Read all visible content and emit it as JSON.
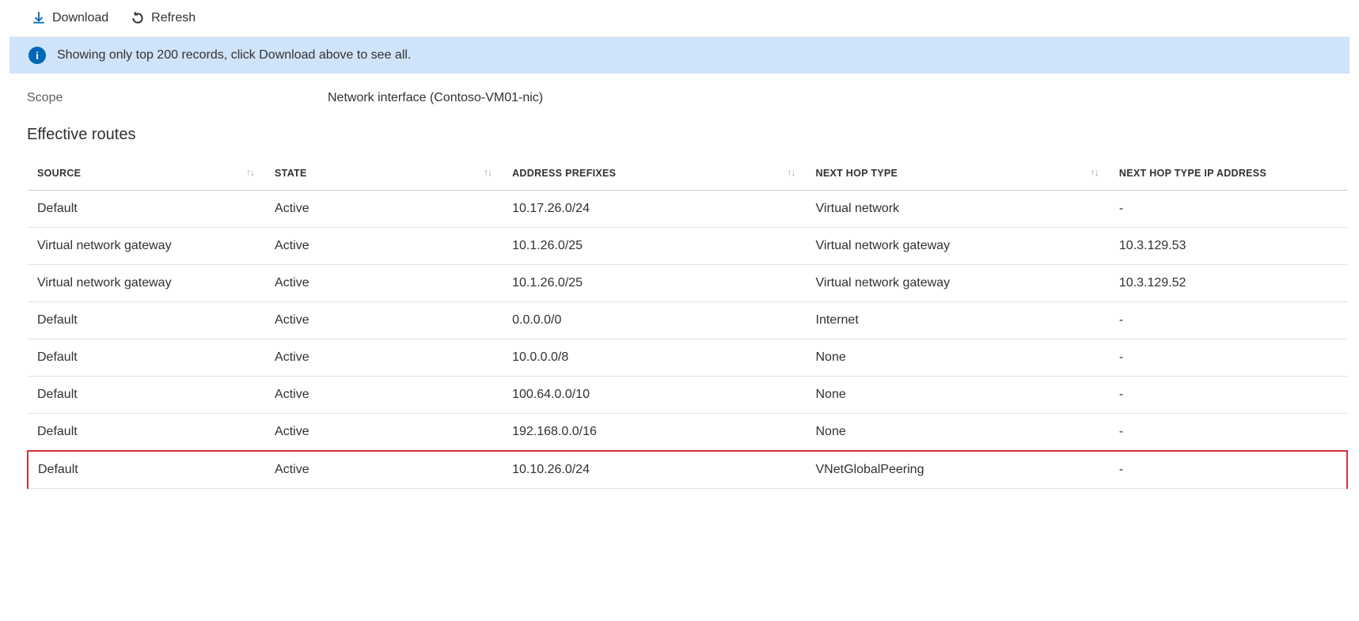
{
  "toolbar": {
    "download_label": "Download",
    "refresh_label": "Refresh"
  },
  "info_bar": {
    "message": "Showing only top 200 records, click Download above to see all."
  },
  "scope": {
    "label": "Scope",
    "value": "Network interface (Contoso-VM01-nic)"
  },
  "section_title": "Effective routes",
  "columns": {
    "source": {
      "label": "Source",
      "width_pct": 18
    },
    "state": {
      "label": "State",
      "width_pct": 18
    },
    "prefixes": {
      "label": "Address Prefixes",
      "width_pct": 23
    },
    "nexthop": {
      "label": "Next Hop Type",
      "width_pct": 23
    },
    "nhip": {
      "label": "Next Hop Type IP Address",
      "width_pct": 18
    }
  },
  "rows": [
    {
      "source": "Default",
      "state": "Active",
      "prefixes": "10.17.26.0/24",
      "nexthop": "Virtual network",
      "nhip": "-",
      "highlight": false
    },
    {
      "source": "Virtual network gateway",
      "state": "Active",
      "prefixes": "10.1.26.0/25",
      "nexthop": "Virtual network gateway",
      "nhip": "10.3.129.53",
      "highlight": false
    },
    {
      "source": "Virtual network gateway",
      "state": "Active",
      "prefixes": "10.1.26.0/25",
      "nexthop": "Virtual network gateway",
      "nhip": "10.3.129.52",
      "highlight": false
    },
    {
      "source": "Default",
      "state": "Active",
      "prefixes": "0.0.0.0/0",
      "nexthop": "Internet",
      "nhip": "-",
      "highlight": false
    },
    {
      "source": "Default",
      "state": "Active",
      "prefixes": "10.0.0.0/8",
      "nexthop": "None",
      "nhip": "-",
      "highlight": false
    },
    {
      "source": "Default",
      "state": "Active",
      "prefixes": "100.64.0.0/10",
      "nexthop": "None",
      "nhip": "-",
      "highlight": false
    },
    {
      "source": "Default",
      "state": "Active",
      "prefixes": "192.168.0.0/16",
      "nexthop": "None",
      "nhip": "-",
      "highlight": false
    },
    {
      "source": "Default",
      "state": "Active",
      "prefixes": "10.10.26.0/24",
      "nexthop": "VNetGlobalPeering",
      "nhip": "-",
      "highlight": true
    }
  ],
  "colors": {
    "accent": "#0067b8",
    "info_bar_bg": "#cfe4fa",
    "highlight_border": "#d13438",
    "row_border": "#e1e1e1",
    "header_border": "#cccccc"
  }
}
